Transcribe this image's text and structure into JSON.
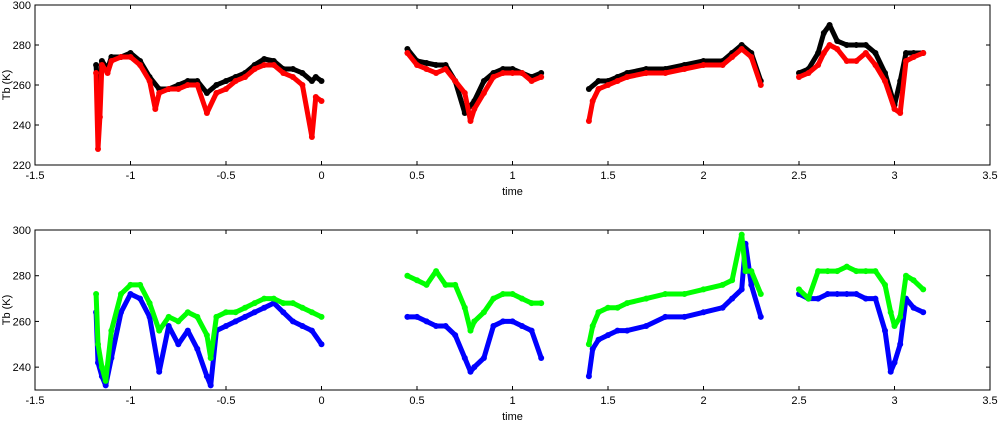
{
  "chart_data": [
    {
      "type": "scatter",
      "xlabel": "time",
      "ylabel": "Tb (K)",
      "xlim": [
        -1.5,
        3.5
      ],
      "ylim": [
        220,
        300
      ],
      "xticks": [
        "-1.5",
        "-1",
        "-0.5",
        "0",
        "0.5",
        "1",
        "1.5",
        "2",
        "2.5",
        "3",
        "3.5"
      ],
      "yticks": [
        "220",
        "240",
        "260",
        "280",
        "300"
      ],
      "grid": false,
      "series": [
        {
          "color": "#000000",
          "x": [
            -1.18,
            -1.17,
            -1.15,
            -1.12,
            -1.1,
            -1.05,
            -1.0,
            -0.95,
            -0.9,
            -0.85,
            -0.8,
            -0.75,
            -0.7,
            -0.65,
            -0.6,
            -0.55,
            -0.5,
            -0.45,
            -0.4,
            -0.35,
            -0.3,
            -0.25,
            -0.2,
            -0.15,
            -0.1,
            -0.05,
            -0.03,
            0.0,
            0.45,
            0.5,
            0.55,
            0.6,
            0.65,
            0.7,
            0.75,
            0.8,
            0.85,
            0.9,
            0.95,
            1.0,
            1.05,
            1.1,
            1.15,
            1.4,
            1.45,
            1.5,
            1.55,
            1.6,
            1.7,
            1.8,
            1.9,
            2.0,
            2.1,
            2.15,
            2.2,
            2.25,
            2.3,
            2.5,
            2.55,
            2.6,
            2.63,
            2.66,
            2.7,
            2.75,
            2.8,
            2.85,
            2.9,
            2.95,
            3.0,
            3.03,
            3.06,
            3.1,
            3.15
          ],
          "y": [
            270,
            250,
            272,
            268,
            274,
            274,
            276,
            272,
            264,
            258,
            258,
            260,
            262,
            262,
            256,
            260,
            262,
            264,
            266,
            270,
            273,
            272,
            268,
            268,
            266,
            262,
            264,
            262,
            278,
            272,
            271,
            270,
            270,
            262,
            246,
            252,
            262,
            266,
            268,
            268,
            266,
            264,
            266,
            258,
            262,
            262,
            264,
            266,
            268,
            268,
            270,
            272,
            272,
            276,
            280,
            276,
            262,
            266,
            268,
            276,
            286,
            290,
            282,
            280,
            280,
            280,
            276,
            266,
            250,
            262,
            276,
            276,
            276
          ]
        },
        {
          "color": "#ff0000",
          "x": [
            -1.18,
            -1.17,
            -1.16,
            -1.15,
            -1.12,
            -1.1,
            -1.05,
            -1.0,
            -0.95,
            -0.9,
            -0.87,
            -0.85,
            -0.8,
            -0.75,
            -0.7,
            -0.65,
            -0.6,
            -0.55,
            -0.5,
            -0.45,
            -0.4,
            -0.35,
            -0.3,
            -0.25,
            -0.2,
            -0.15,
            -0.1,
            -0.05,
            -0.03,
            0.0,
            0.45,
            0.5,
            0.55,
            0.6,
            0.65,
            0.7,
            0.75,
            0.78,
            0.8,
            0.85,
            0.9,
            0.95,
            1.0,
            1.05,
            1.1,
            1.15,
            1.4,
            1.42,
            1.45,
            1.5,
            1.55,
            1.6,
            1.7,
            1.8,
            1.9,
            2.0,
            2.1,
            2.15,
            2.2,
            2.25,
            2.3,
            2.5,
            2.55,
            2.6,
            2.63,
            2.66,
            2.7,
            2.75,
            2.8,
            2.85,
            2.9,
            2.95,
            3.0,
            3.03,
            3.06,
            3.1,
            3.15
          ],
          "y": [
            266,
            228,
            244,
            270,
            266,
            272,
            274,
            274,
            270,
            262,
            248,
            256,
            258,
            258,
            260,
            260,
            246,
            256,
            258,
            262,
            264,
            268,
            270,
            270,
            266,
            264,
            260,
            234,
            254,
            252,
            276,
            270,
            268,
            266,
            268,
            262,
            256,
            242,
            248,
            256,
            264,
            266,
            266,
            266,
            262,
            264,
            242,
            252,
            258,
            260,
            262,
            264,
            266,
            266,
            268,
            270,
            270,
            274,
            278,
            274,
            260,
            264,
            266,
            270,
            276,
            280,
            278,
            272,
            272,
            276,
            270,
            262,
            248,
            246,
            272,
            274,
            276
          ]
        }
      ]
    },
    {
      "type": "scatter",
      "xlabel": "time",
      "ylabel": "Tb (K)",
      "xlim": [
        -1.5,
        3.5
      ],
      "ylim": [
        230,
        300
      ],
      "xticks": [
        "-1.5",
        "-1",
        "-0.5",
        "0",
        "0.5",
        "1",
        "1.5",
        "2",
        "2.5",
        "3",
        "3.5"
      ],
      "yticks": [
        "240",
        "260",
        "280",
        "300"
      ],
      "grid": false,
      "series": [
        {
          "color": "#0000ff",
          "x": [
            -1.18,
            -1.17,
            -1.15,
            -1.13,
            -1.1,
            -1.05,
            -1.0,
            -0.95,
            -0.9,
            -0.85,
            -0.8,
            -0.75,
            -0.7,
            -0.65,
            -0.6,
            -0.58,
            -0.55,
            -0.5,
            -0.45,
            -0.4,
            -0.35,
            -0.3,
            -0.25,
            -0.2,
            -0.15,
            -0.1,
            -0.05,
            0.0,
            0.45,
            0.5,
            0.55,
            0.6,
            0.65,
            0.7,
            0.75,
            0.78,
            0.8,
            0.85,
            0.9,
            0.95,
            1.0,
            1.05,
            1.1,
            1.15,
            1.4,
            1.42,
            1.45,
            1.5,
            1.55,
            1.6,
            1.7,
            1.8,
            1.9,
            2.0,
            2.1,
            2.15,
            2.2,
            2.22,
            2.25,
            2.3,
            2.5,
            2.55,
            2.6,
            2.65,
            2.7,
            2.75,
            2.8,
            2.85,
            2.9,
            2.95,
            2.98,
            3.0,
            3.03,
            3.06,
            3.1,
            3.15
          ],
          "y": [
            264,
            242,
            236,
            232,
            244,
            264,
            272,
            270,
            262,
            238,
            258,
            250,
            256,
            248,
            236,
            232,
            256,
            258,
            260,
            262,
            264,
            266,
            268,
            264,
            260,
            258,
            256,
            250,
            262,
            262,
            260,
            258,
            258,
            254,
            244,
            238,
            240,
            244,
            258,
            260,
            260,
            258,
            256,
            244,
            236,
            248,
            252,
            254,
            256,
            256,
            258,
            262,
            262,
            264,
            266,
            270,
            274,
            294,
            276,
            262,
            272,
            270,
            270,
            272,
            272,
            272,
            272,
            270,
            270,
            256,
            238,
            242,
            250,
            270,
            266,
            264
          ]
        },
        {
          "color": "#00ff00",
          "x": [
            -1.18,
            -1.17,
            -1.15,
            -1.13,
            -1.1,
            -1.05,
            -1.0,
            -0.95,
            -0.9,
            -0.85,
            -0.8,
            -0.75,
            -0.7,
            -0.65,
            -0.6,
            -0.58,
            -0.55,
            -0.5,
            -0.45,
            -0.4,
            -0.35,
            -0.3,
            -0.25,
            -0.2,
            -0.15,
            -0.1,
            -0.05,
            0.0,
            0.45,
            0.5,
            0.55,
            0.6,
            0.65,
            0.7,
            0.75,
            0.78,
            0.8,
            0.85,
            0.9,
            0.95,
            1.0,
            1.05,
            1.1,
            1.15,
            1.4,
            1.42,
            1.45,
            1.5,
            1.55,
            1.6,
            1.7,
            1.8,
            1.9,
            2.0,
            2.1,
            2.15,
            2.2,
            2.22,
            2.25,
            2.3,
            2.5,
            2.55,
            2.6,
            2.65,
            2.7,
            2.75,
            2.8,
            2.85,
            2.9,
            2.95,
            2.98,
            3.0,
            3.03,
            3.06,
            3.1,
            3.15
          ],
          "y": [
            272,
            250,
            240,
            234,
            256,
            272,
            276,
            276,
            268,
            256,
            262,
            260,
            264,
            262,
            254,
            244,
            262,
            264,
            264,
            266,
            268,
            270,
            270,
            268,
            268,
            266,
            264,
            262,
            280,
            278,
            276,
            282,
            276,
            276,
            266,
            256,
            260,
            264,
            270,
            272,
            272,
            270,
            268,
            268,
            250,
            258,
            264,
            266,
            266,
            268,
            270,
            272,
            272,
            274,
            276,
            278,
            298,
            282,
            282,
            272,
            274,
            270,
            282,
            282,
            282,
            284,
            282,
            282,
            282,
            276,
            264,
            258,
            262,
            280,
            278,
            274
          ]
        }
      ]
    }
  ]
}
